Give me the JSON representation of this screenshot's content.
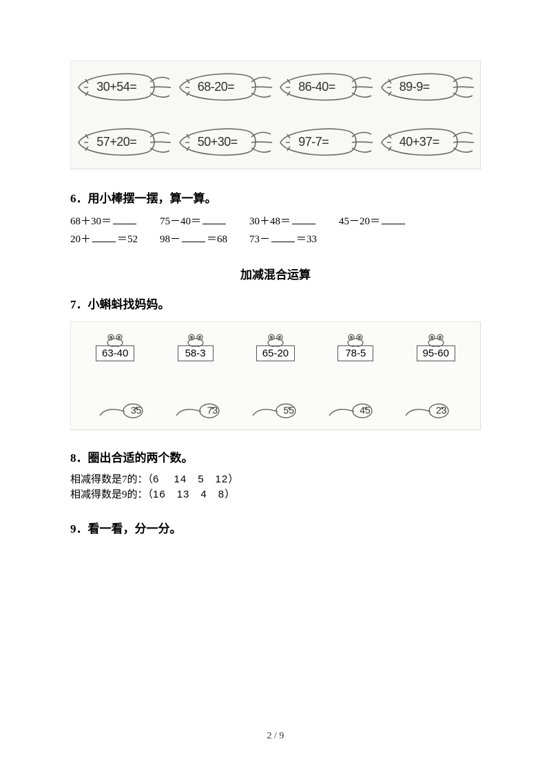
{
  "carrots": {
    "row1": [
      "30+54=",
      "68-20=",
      "86-40=",
      "89-9="
    ],
    "row2": [
      "57+20=",
      "50+30=",
      "97-7=",
      "40+37="
    ],
    "stroke": "#6a6a6a"
  },
  "q6": {
    "title": "6．用小棒摆一摆，算一算。",
    "line1": [
      {
        "pre": "68＋30＝",
        "blank": true
      },
      {
        "pre": "75－40＝",
        "blank": true
      },
      {
        "pre": "30＋48＝",
        "blank": true
      },
      {
        "pre": "45－20＝",
        "blank": true
      }
    ],
    "line2": [
      {
        "pre": "20＋",
        "mid_blank": true,
        "post": "＝52"
      },
      {
        "pre": "98－",
        "mid_blank": true,
        "post": "＝68"
      },
      {
        "pre": "73－",
        "mid_blank": true,
        "post": "＝33"
      }
    ],
    "col_widths1": [
      130,
      130,
      130,
      130
    ],
    "col_widths2": [
      130,
      130,
      130
    ]
  },
  "section_title": "加减混合运算",
  "q7": {
    "title": "7．小蝌蚪找妈妈。",
    "frogs": [
      "63-40",
      "58-3",
      "65-20",
      "78-5",
      "95-60"
    ],
    "answers": [
      "35",
      "73",
      "55",
      "45",
      "23"
    ],
    "stroke": "#666"
  },
  "q8": {
    "title": "8．圈出合适的两个数。",
    "line1_label": "相减得数是7的：（",
    "line1_nums": "6　 14　5　12",
    "line2_label": "相减得数是9的：（",
    "line2_nums": "16　13　4　8",
    "close": "）"
  },
  "q9_title": "9．看一看，分一分。",
  "page_number": "2 / 9"
}
